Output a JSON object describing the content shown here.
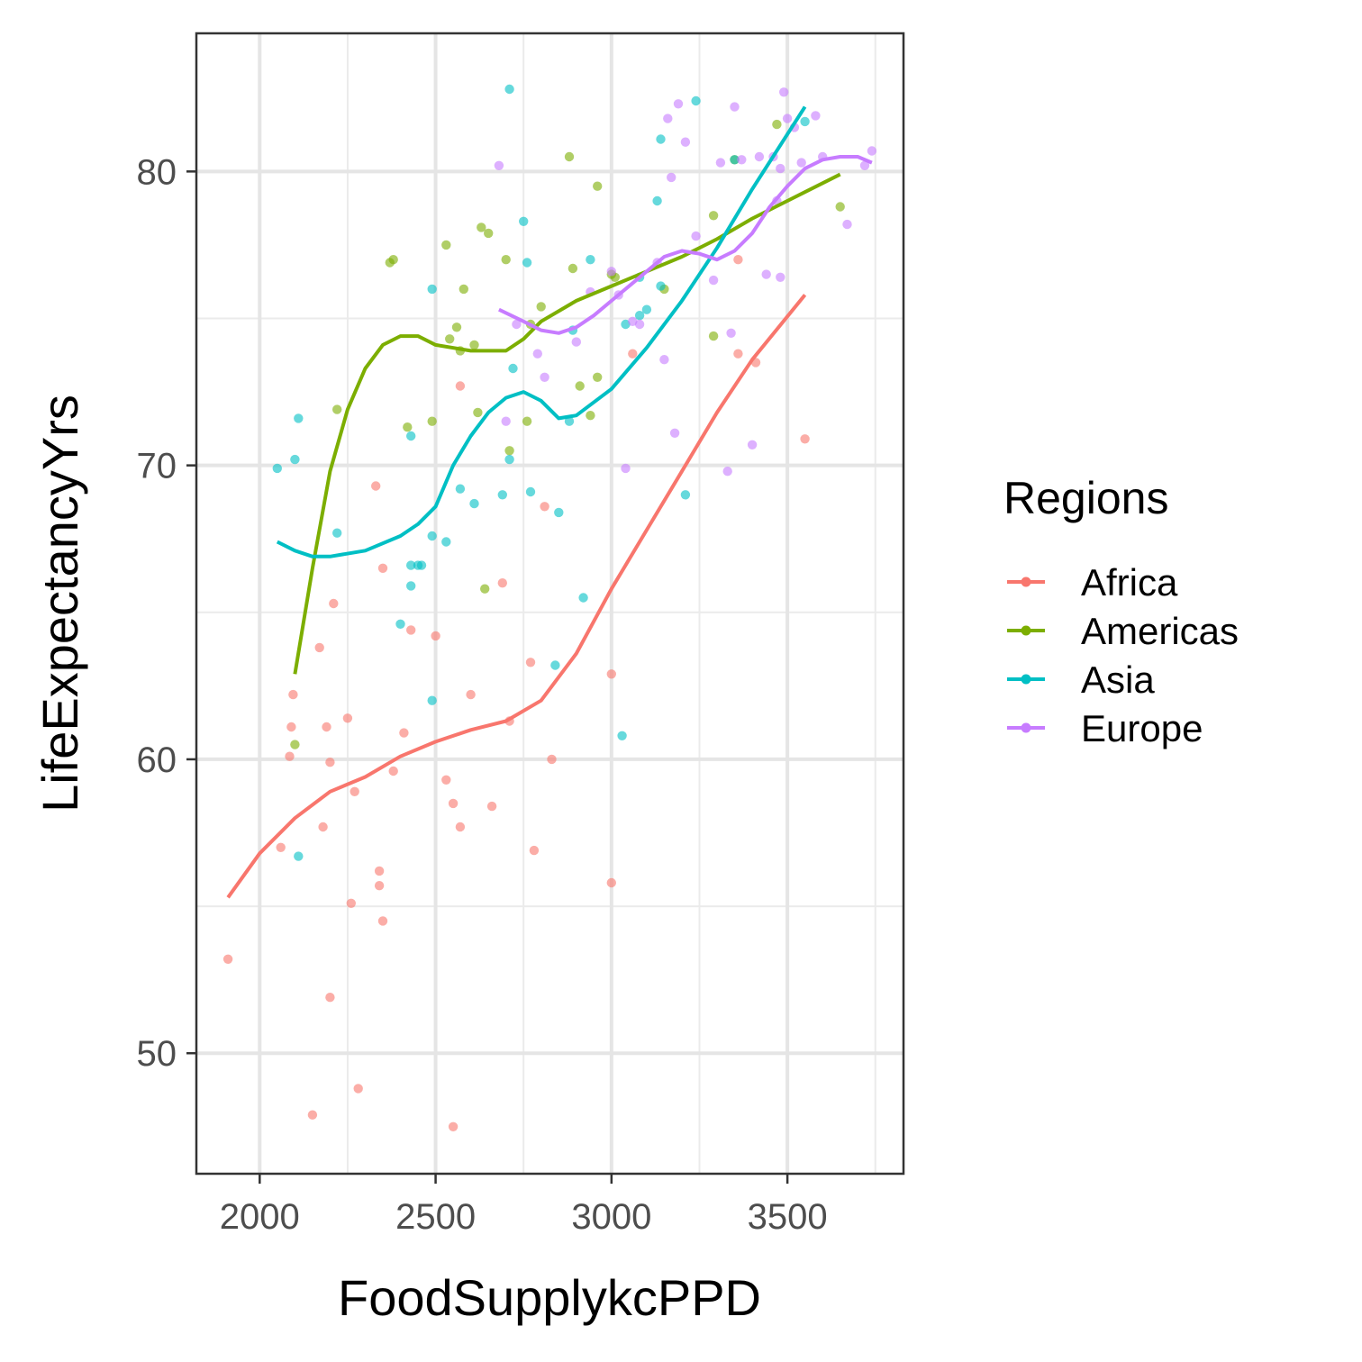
{
  "chart_data": {
    "type": "scatter",
    "xlabel": "FoodSupplykcPPD",
    "ylabel": "LifeExpectancyYrs",
    "xlim": [
      1820,
      3830
    ],
    "ylim": [
      45.9,
      84.7
    ],
    "x_ticks": [
      2000,
      2500,
      3000,
      3500
    ],
    "x_minor_ticks": [
      2250,
      2750,
      3250,
      3750
    ],
    "y_ticks": [
      50,
      60,
      70,
      80
    ],
    "y_minor_ticks": [
      55,
      65,
      75
    ],
    "grid": true,
    "legend": {
      "title": "Regions",
      "placement": "right"
    },
    "series": [
      {
        "name": "Africa",
        "color": "#F8766D",
        "points": [
          [
            1910,
            53.2
          ],
          [
            2060,
            57
          ],
          [
            2085,
            60.1
          ],
          [
            2090,
            61.1
          ],
          [
            2095,
            62.2
          ],
          [
            2150,
            47.9
          ],
          [
            2170,
            63.8
          ],
          [
            2180,
            57.7
          ],
          [
            2190,
            61.1
          ],
          [
            2200,
            59.9
          ],
          [
            2200,
            51.9
          ],
          [
            2210,
            65.3
          ],
          [
            2250,
            61.4
          ],
          [
            2260,
            55.1
          ],
          [
            2270,
            58.9
          ],
          [
            2280,
            48.8
          ],
          [
            2330,
            69.3
          ],
          [
            2340,
            56.2
          ],
          [
            2340,
            55.7
          ],
          [
            2350,
            54.5
          ],
          [
            2350,
            66.5
          ],
          [
            2380,
            59.6
          ],
          [
            2410,
            60.9
          ],
          [
            2430,
            64.4
          ],
          [
            2500,
            64.2
          ],
          [
            2530,
            59.3
          ],
          [
            2550,
            58.5
          ],
          [
            2550,
            47.5
          ],
          [
            2570,
            72.7
          ],
          [
            2570,
            57.7
          ],
          [
            2600,
            62.2
          ],
          [
            2660,
            58.4
          ],
          [
            2690,
            66
          ],
          [
            2710,
            61.3
          ],
          [
            2770,
            63.3
          ],
          [
            2780,
            56.9
          ],
          [
            2810,
            68.6
          ],
          [
            2830,
            60
          ],
          [
            3000,
            62.9
          ],
          [
            3000,
            55.8
          ],
          [
            3060,
            73.8
          ],
          [
            3360,
            73.8
          ],
          [
            3360,
            77
          ],
          [
            3410,
            73.5
          ],
          [
            3550,
            70.9
          ]
        ],
        "trend": [
          [
            1910,
            55.3
          ],
          [
            2000,
            56.8
          ],
          [
            2100,
            58
          ],
          [
            2200,
            58.9
          ],
          [
            2300,
            59.4
          ],
          [
            2400,
            60.1
          ],
          [
            2500,
            60.6
          ],
          [
            2600,
            61
          ],
          [
            2700,
            61.3
          ],
          [
            2800,
            62
          ],
          [
            2900,
            63.6
          ],
          [
            3000,
            65.8
          ],
          [
            3100,
            67.8
          ],
          [
            3200,
            69.8
          ],
          [
            3300,
            71.8
          ],
          [
            3400,
            73.6
          ],
          [
            3550,
            75.8
          ]
        ]
      },
      {
        "name": "Americas",
        "color": "#7CAE00",
        "points": [
          [
            2100,
            60.5
          ],
          [
            2220,
            71.9
          ],
          [
            2370,
            76.9
          ],
          [
            2380,
            77
          ],
          [
            2420,
            71.3
          ],
          [
            2490,
            71.5
          ],
          [
            2530,
            77.5
          ],
          [
            2540,
            74.3
          ],
          [
            2560,
            74.7
          ],
          [
            2570,
            73.9
          ],
          [
            2580,
            76
          ],
          [
            2610,
            74.1
          ],
          [
            2620,
            71.8
          ],
          [
            2630,
            78.1
          ],
          [
            2640,
            65.8
          ],
          [
            2650,
            77.9
          ],
          [
            2700,
            77
          ],
          [
            2710,
            70.5
          ],
          [
            2760,
            71.5
          ],
          [
            2770,
            74.8
          ],
          [
            2800,
            75.4
          ],
          [
            2880,
            80.5
          ],
          [
            2890,
            76.7
          ],
          [
            2910,
            72.7
          ],
          [
            2940,
            71.7
          ],
          [
            2960,
            73
          ],
          [
            2960,
            79.5
          ],
          [
            3000,
            76.5
          ],
          [
            3010,
            76.4
          ],
          [
            3150,
            76
          ],
          [
            3290,
            78.5
          ],
          [
            3290,
            74.4
          ],
          [
            3350,
            80.4
          ],
          [
            3470,
            81.6
          ],
          [
            3650,
            78.8
          ]
        ],
        "trend": [
          [
            2100,
            62.9
          ],
          [
            2150,
            66.5
          ],
          [
            2200,
            69.8
          ],
          [
            2250,
            71.9
          ],
          [
            2300,
            73.3
          ],
          [
            2350,
            74.1
          ],
          [
            2400,
            74.4
          ],
          [
            2450,
            74.4
          ],
          [
            2500,
            74.1
          ],
          [
            2600,
            73.9
          ],
          [
            2700,
            73.9
          ],
          [
            2750,
            74.3
          ],
          [
            2800,
            74.9
          ],
          [
            2900,
            75.6
          ],
          [
            3000,
            76.1
          ],
          [
            3100,
            76.6
          ],
          [
            3200,
            77.1
          ],
          [
            3300,
            77.7
          ],
          [
            3400,
            78.4
          ],
          [
            3500,
            79
          ],
          [
            3650,
            79.9
          ]
        ]
      },
      {
        "name": "Asia",
        "color": "#00BFC4",
        "points": [
          [
            2050,
            69.9
          ],
          [
            2100,
            70.2
          ],
          [
            2110,
            71.6
          ],
          [
            2110,
            56.7
          ],
          [
            2220,
            67.7
          ],
          [
            2400,
            64.6
          ],
          [
            2430,
            71
          ],
          [
            2430,
            66.6
          ],
          [
            2430,
            65.9
          ],
          [
            2450,
            66.6
          ],
          [
            2460,
            66.6
          ],
          [
            2490,
            76
          ],
          [
            2490,
            67.6
          ],
          [
            2490,
            62
          ],
          [
            2530,
            67.4
          ],
          [
            2570,
            69.2
          ],
          [
            2610,
            68.7
          ],
          [
            2690,
            69
          ],
          [
            2710,
            82.8
          ],
          [
            2710,
            70.2
          ],
          [
            2720,
            73.3
          ],
          [
            2750,
            78.3
          ],
          [
            2760,
            76.9
          ],
          [
            2770,
            69.1
          ],
          [
            2840,
            63.2
          ],
          [
            2850,
            68.4
          ],
          [
            2880,
            71.5
          ],
          [
            2890,
            74.6
          ],
          [
            2920,
            65.5
          ],
          [
            2940,
            77
          ],
          [
            3030,
            60.8
          ],
          [
            3040,
            74.8
          ],
          [
            3080,
            76.4
          ],
          [
            3080,
            75.1
          ],
          [
            3100,
            75.3
          ],
          [
            3130,
            79
          ],
          [
            3140,
            81.1
          ],
          [
            3140,
            76.1
          ],
          [
            3210,
            69
          ],
          [
            3240,
            82.4
          ],
          [
            3350,
            80.4
          ],
          [
            3550,
            81.7
          ]
        ],
        "trend": [
          [
            2050,
            67.4
          ],
          [
            2100,
            67.1
          ],
          [
            2150,
            66.9
          ],
          [
            2200,
            66.9
          ],
          [
            2300,
            67.1
          ],
          [
            2400,
            67.6
          ],
          [
            2450,
            68
          ],
          [
            2500,
            68.6
          ],
          [
            2550,
            70
          ],
          [
            2600,
            71
          ],
          [
            2650,
            71.8
          ],
          [
            2700,
            72.3
          ],
          [
            2750,
            72.5
          ],
          [
            2800,
            72.2
          ],
          [
            2850,
            71.6
          ],
          [
            2900,
            71.7
          ],
          [
            3000,
            72.6
          ],
          [
            3100,
            74
          ],
          [
            3200,
            75.6
          ],
          [
            3300,
            77.4
          ],
          [
            3400,
            79.4
          ],
          [
            3550,
            82.2
          ]
        ]
      },
      {
        "name": "Europe",
        "color": "#C77CFF",
        "points": [
          [
            2680,
            80.2
          ],
          [
            2700,
            71.5
          ],
          [
            2730,
            74.8
          ],
          [
            2790,
            73.8
          ],
          [
            2810,
            73
          ],
          [
            2900,
            74.2
          ],
          [
            2940,
            75.9
          ],
          [
            3000,
            76.6
          ],
          [
            3020,
            75.8
          ],
          [
            3040,
            69.9
          ],
          [
            3060,
            74.9
          ],
          [
            3080,
            74.8
          ],
          [
            3130,
            76.9
          ],
          [
            3150,
            73.6
          ],
          [
            3160,
            81.8
          ],
          [
            3170,
            79.8
          ],
          [
            3180,
            71.1
          ],
          [
            3190,
            82.3
          ],
          [
            3210,
            81
          ],
          [
            3240,
            77.8
          ],
          [
            3290,
            76.3
          ],
          [
            3310,
            80.3
          ],
          [
            3330,
            69.8
          ],
          [
            3340,
            74.5
          ],
          [
            3350,
            82.2
          ],
          [
            3370,
            80.4
          ],
          [
            3400,
            70.7
          ],
          [
            3420,
            80.5
          ],
          [
            3440,
            76.5
          ],
          [
            3460,
            80.5
          ],
          [
            3470,
            79
          ],
          [
            3480,
            76.4
          ],
          [
            3480,
            80.1
          ],
          [
            3490,
            82.7
          ],
          [
            3500,
            81.8
          ],
          [
            3520,
            81.5
          ],
          [
            3540,
            80.3
          ],
          [
            3580,
            81.9
          ],
          [
            3600,
            80.5
          ],
          [
            3670,
            78.2
          ],
          [
            3720,
            80.2
          ],
          [
            3740,
            80.7
          ]
        ],
        "trend": [
          [
            2680,
            75.3
          ],
          [
            2750,
            74.9
          ],
          [
            2800,
            74.6
          ],
          [
            2850,
            74.5
          ],
          [
            2900,
            74.7
          ],
          [
            2950,
            75.1
          ],
          [
            3000,
            75.6
          ],
          [
            3050,
            76.1
          ],
          [
            3100,
            76.6
          ],
          [
            3150,
            77.1
          ],
          [
            3200,
            77.3
          ],
          [
            3250,
            77.2
          ],
          [
            3300,
            77
          ],
          [
            3350,
            77.3
          ],
          [
            3400,
            77.9
          ],
          [
            3450,
            78.8
          ],
          [
            3500,
            79.5
          ],
          [
            3550,
            80.1
          ],
          [
            3600,
            80.4
          ],
          [
            3650,
            80.5
          ],
          [
            3700,
            80.5
          ],
          [
            3740,
            80.3
          ]
        ]
      }
    ]
  }
}
